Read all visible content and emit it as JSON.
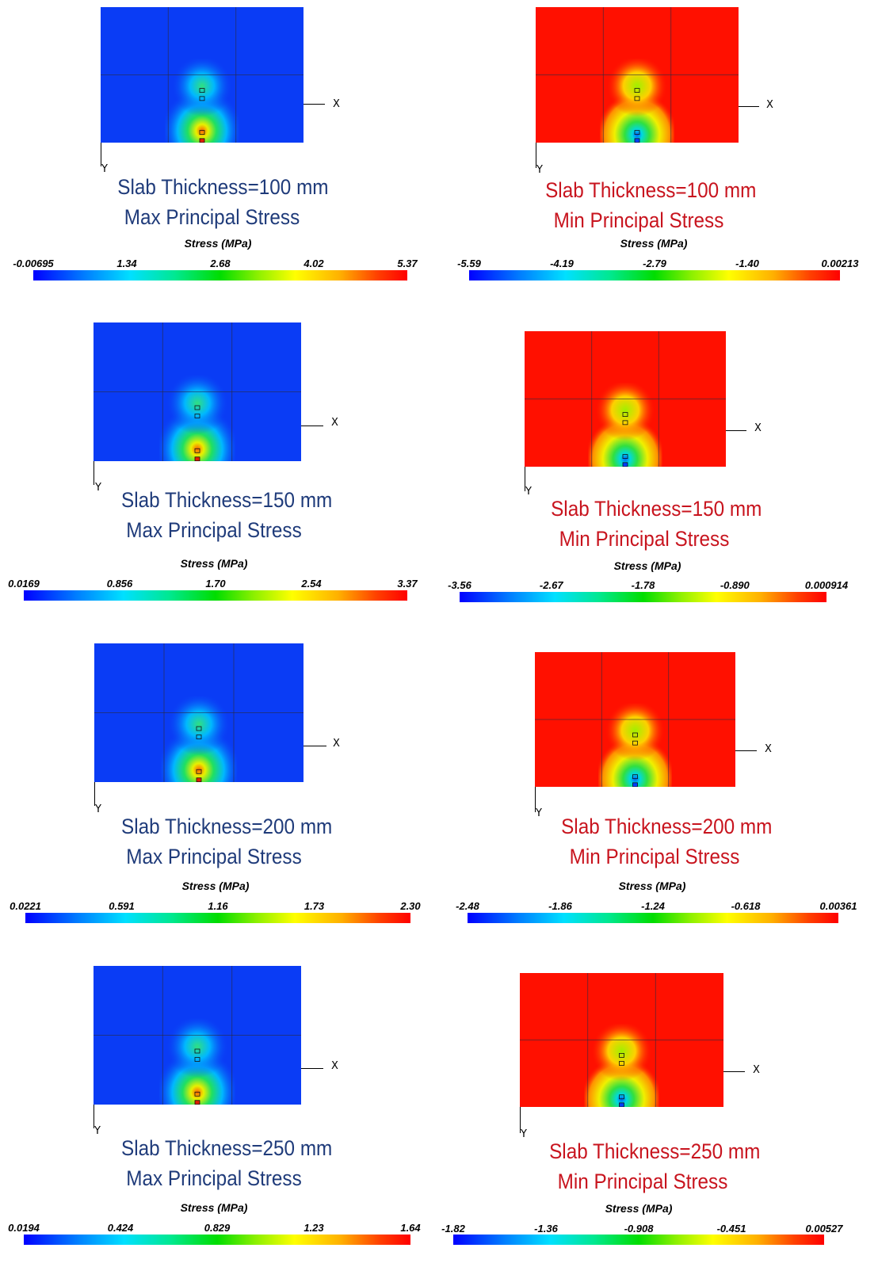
{
  "colorbar_title": "Stress (MPa)",
  "axis_x": "X",
  "axis_y": "Y",
  "colors": {
    "max_bg": "#0a3cf5",
    "min_bg": "#ff1000",
    "max_caption": "#1f3b7a",
    "min_caption": "#c8141e"
  },
  "rows": [
    {
      "max": {
        "caption1": "Slab Thickness=100 mm",
        "caption2": "Max Principal Stress",
        "ticks": [
          "-0.00695",
          "1.34",
          "2.68",
          "4.02",
          "5.37"
        ]
      },
      "min": {
        "caption1": "Slab Thickness=100 mm",
        "caption2": "Min Principal Stress",
        "ticks": [
          "-5.59",
          "-4.19",
          "-2.79",
          "-1.40",
          "0.00213"
        ]
      }
    },
    {
      "max": {
        "caption1": "Slab Thickness=150 mm",
        "caption2": "Max Principal Stress",
        "ticks": [
          "0.0169",
          "0.856",
          "1.70",
          "2.54",
          "3.37"
        ]
      },
      "min": {
        "caption1": "Slab Thickness=150 mm",
        "caption2": "Min Principal Stress",
        "ticks": [
          "-3.56",
          "-2.67",
          "-1.78",
          "-0.890",
          "0.000914"
        ]
      }
    },
    {
      "max": {
        "caption1": "Slab Thickness=200 mm",
        "caption2": "Max Principal Stress",
        "ticks": [
          "0.0221",
          "0.591",
          "1.16",
          "1.73",
          "2.30"
        ]
      },
      "min": {
        "caption1": "Slab Thickness=200 mm",
        "caption2": "Min Principal Stress",
        "ticks": [
          "-2.48",
          "-1.86",
          "-1.24",
          "-0.618",
          "0.00361"
        ]
      }
    },
    {
      "max": {
        "caption1": "Slab Thickness=250 mm",
        "caption2": "Max Principal Stress",
        "ticks": [
          "0.0194",
          "0.424",
          "0.829",
          "1.23",
          "1.64"
        ]
      },
      "min": {
        "caption1": "Slab Thickness=250 mm",
        "caption2": "Min Principal Stress",
        "ticks": [
          "-1.82",
          "-1.36",
          "-0.908",
          "-0.451",
          "0.00527"
        ]
      }
    }
  ]
}
